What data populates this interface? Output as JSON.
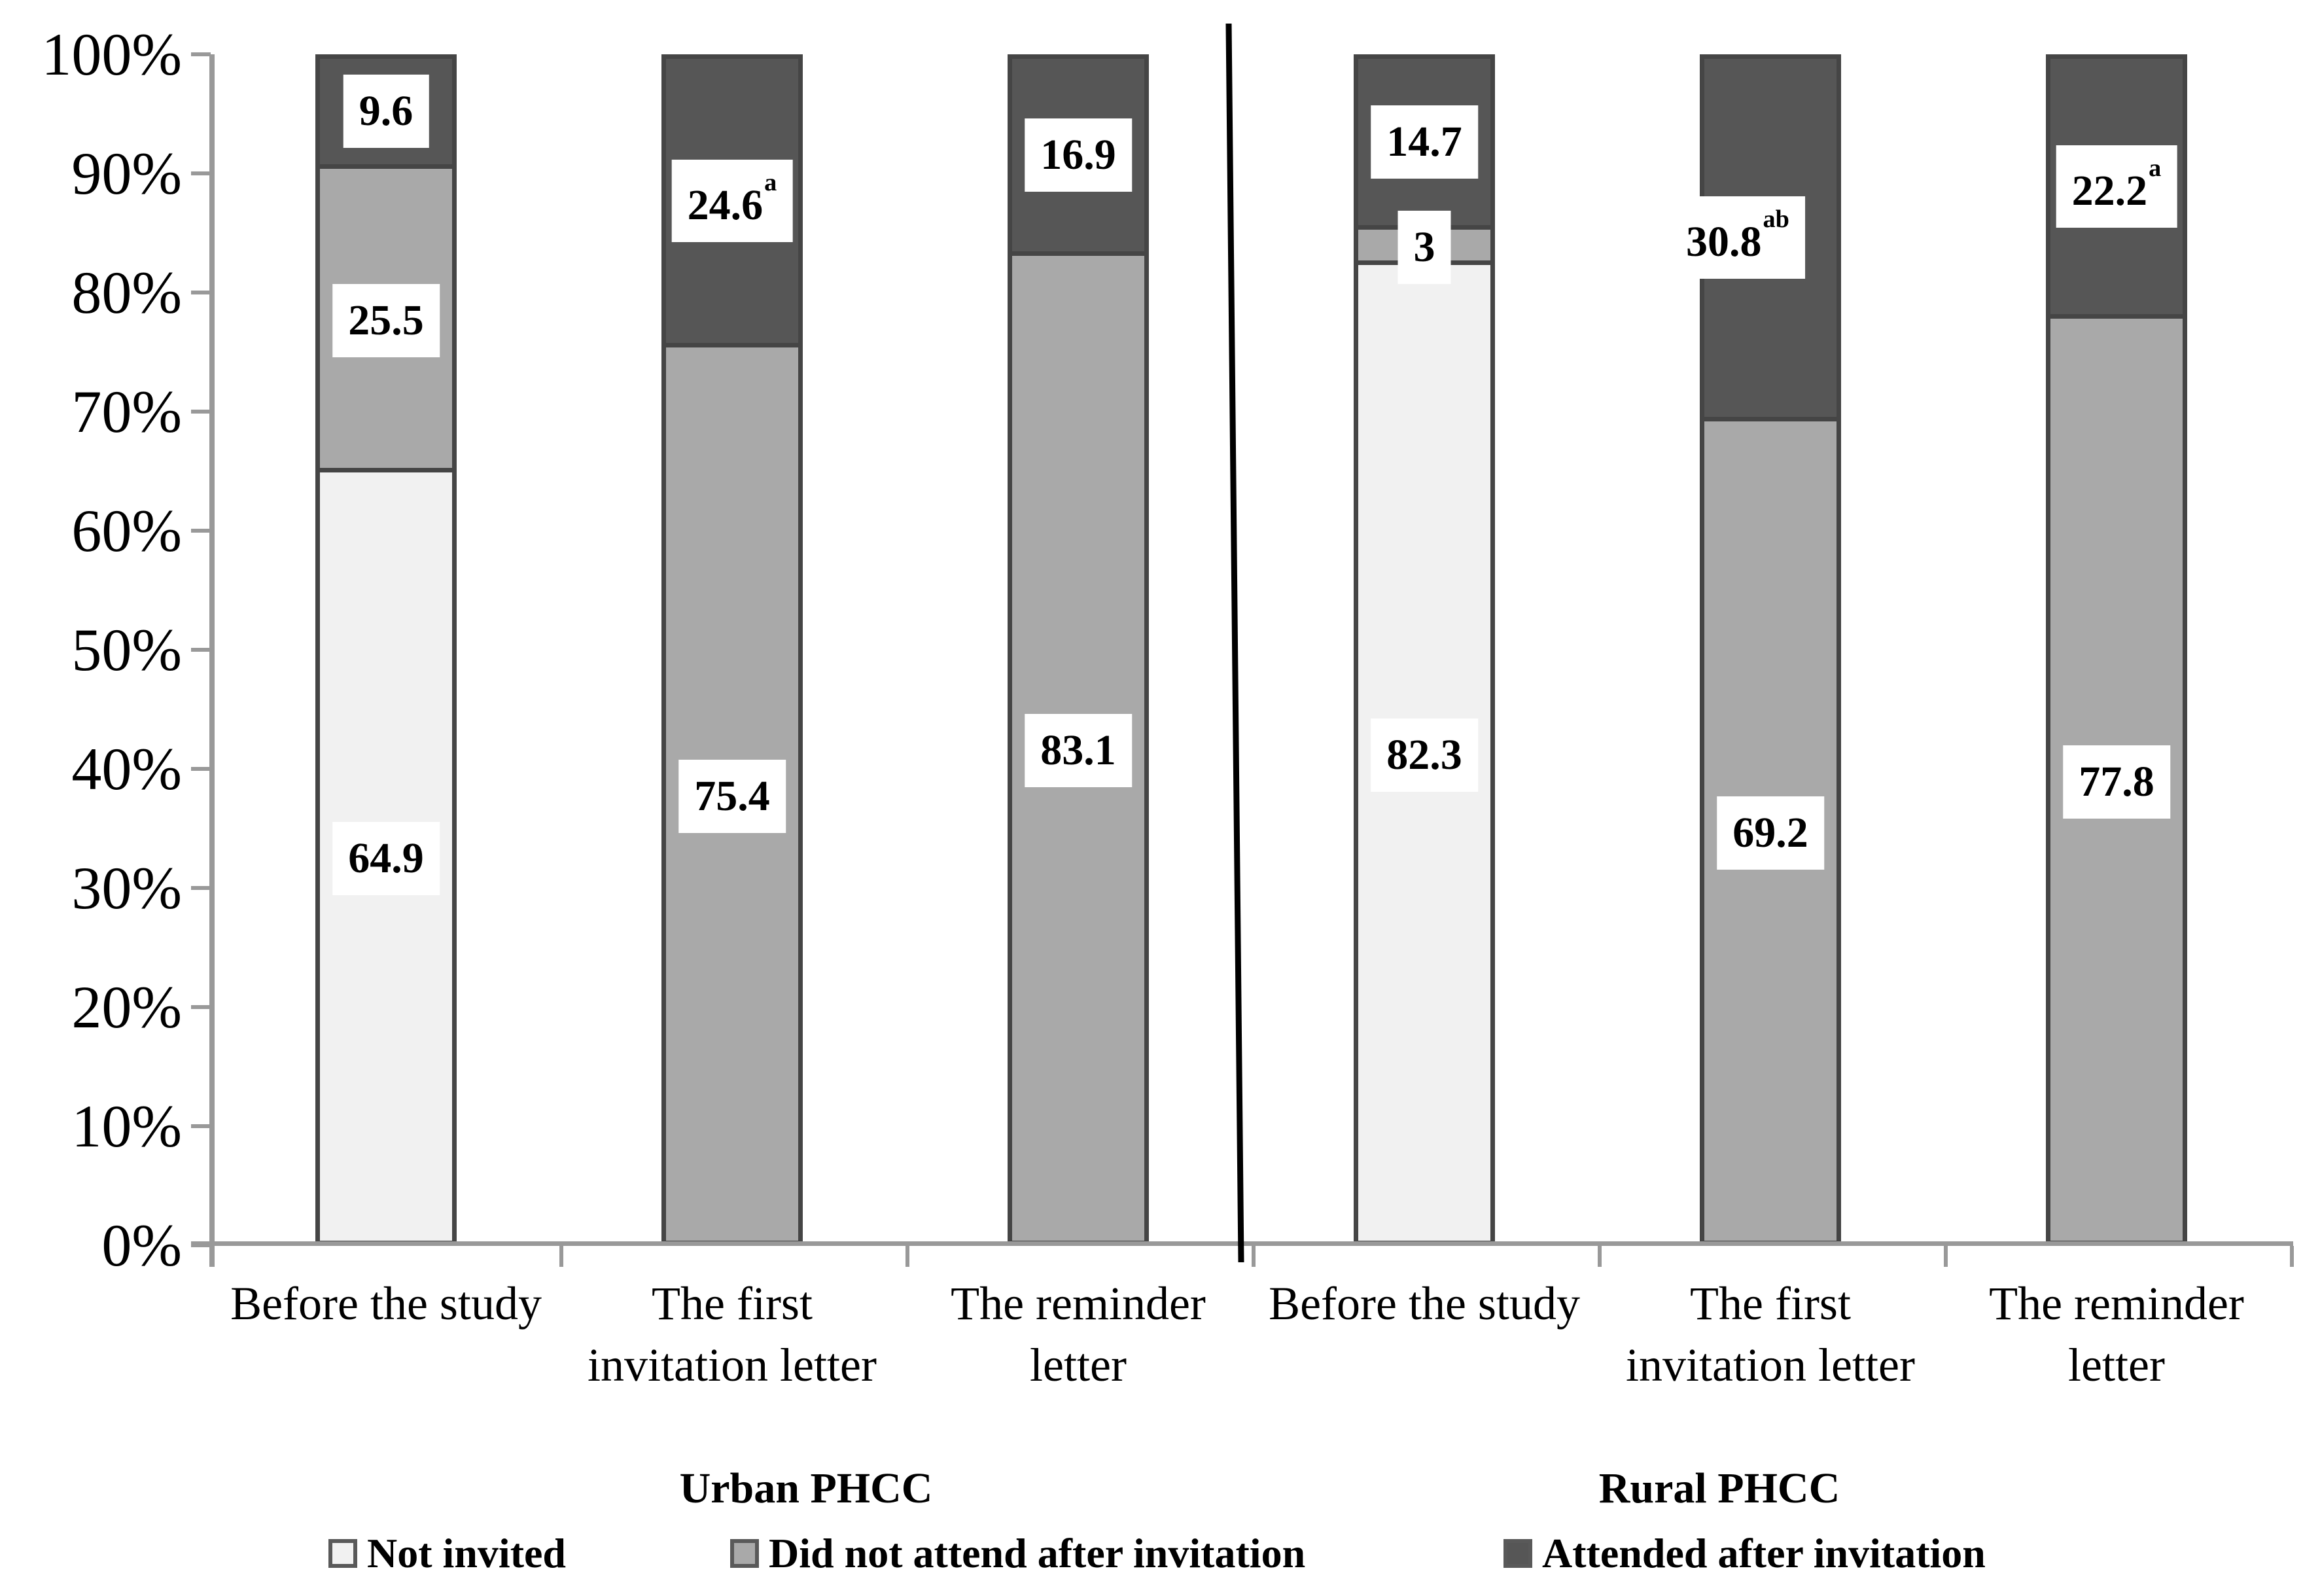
{
  "figure": {
    "background": "#ffffff"
  },
  "chart_data": {
    "type": "bar",
    "subtype": "stacked-percent-column",
    "title": "",
    "xlabel": "",
    "ylabel": "",
    "ylim": [
      0,
      100
    ],
    "grid": false,
    "legend_position": "bottom",
    "ytick_labels": [
      "100%",
      "90%",
      "80%",
      "70%",
      "60%",
      "50%",
      "40%",
      "30%",
      "20%",
      "10%",
      "0%"
    ],
    "series": [
      {
        "name": "Not invited",
        "color": "#f1f1f1"
      },
      {
        "name": "Did not attend after invitation",
        "color": "#a9a9a9"
      },
      {
        "name": "Attended after invitation",
        "color": "#565656"
      }
    ],
    "colors": {
      "segment_border": "#454545",
      "axis": "#999999",
      "divider": "#000000",
      "label_box": "#ffffff",
      "text": "#000000",
      "legend_swatch_border": "#595959"
    },
    "groups": [
      {
        "name": "Urban PHCC",
        "bars": [
          {
            "category": "Before the study",
            "segments": [
              {
                "series": "Not invited",
                "value": 64.9,
                "label": "64.9"
              },
              {
                "series": "Did not attend after invitation",
                "value": 25.5,
                "label": "25.5"
              },
              {
                "series": "Attended after invitation",
                "value": 9.6,
                "label": "9.6"
              }
            ]
          },
          {
            "category": "The first invitation letter",
            "segments": [
              {
                "series": "Did not attend after invitation",
                "value": 75.4,
                "label": "75.4"
              },
              {
                "series": "Attended after invitation",
                "value": 24.6,
                "label": "24.6",
                "superscript": "a"
              }
            ]
          },
          {
            "category": "The reminder letter",
            "segments": [
              {
                "series": "Did not attend after invitation",
                "value": 83.1,
                "label": "83.1"
              },
              {
                "series": "Attended after invitation",
                "value": 16.9,
                "label": "16.9"
              }
            ]
          }
        ]
      },
      {
        "name": "Rural PHCC",
        "bars": [
          {
            "category": "Before the study",
            "segments": [
              {
                "series": "Not invited",
                "value": 82.3,
                "label": "82.3"
              },
              {
                "series": "Did not attend after invitation",
                "value": 3,
                "label": "3"
              },
              {
                "series": "Attended after invitation",
                "value": 14.7,
                "label": "14.7"
              }
            ]
          },
          {
            "category": "The first invitation letter",
            "segments": [
              {
                "series": "Did not attend after invitation",
                "value": 69.2,
                "label": "69.2"
              },
              {
                "series": "Attended after invitation",
                "value": 30.8,
                "label": "30.8",
                "superscript": "ab",
                "label_dx": -50
              }
            ]
          },
          {
            "category": "The reminder letter",
            "segments": [
              {
                "series": "Did not attend after invitation",
                "value": 77.8,
                "label": "77.8"
              },
              {
                "series": "Attended after invitation",
                "value": 22.2,
                "label": "22.2",
                "superscript": "a"
              }
            ]
          }
        ]
      }
    ]
  }
}
